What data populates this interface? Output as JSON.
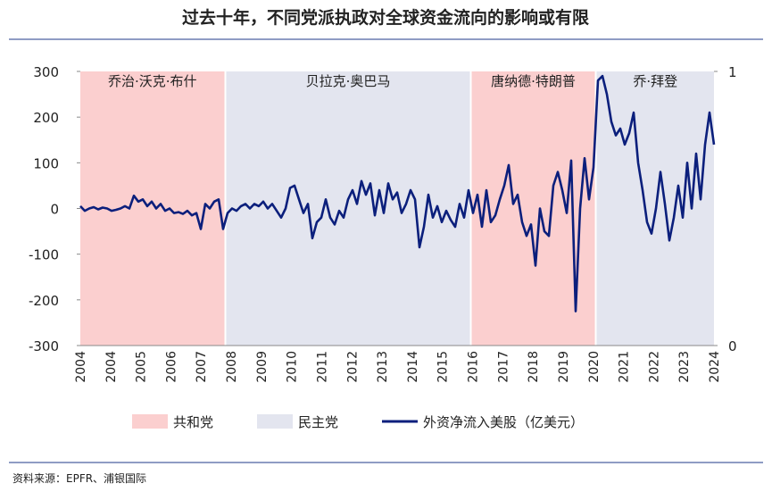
{
  "chart_data": {
    "type": "line",
    "title": "过去十年，不同党派执政对全球资金流向的影响或有限",
    "x_labels": [
      "2004",
      "2004",
      "2005",
      "2006",
      "2007",
      "2008",
      "2009",
      "2010",
      "2011",
      "2012",
      "2013",
      "2014",
      "2015",
      "2016",
      "2017",
      "2018",
      "2019",
      "2020",
      "2021",
      "2022",
      "2023",
      "2024"
    ],
    "ylim": [
      -300,
      300
    ],
    "yticks": [
      -300,
      -200,
      -100,
      0,
      100,
      200,
      300
    ],
    "y2lim": [
      0,
      1
    ],
    "y2ticks": [
      0,
      1
    ],
    "parties": [
      {
        "name": "共和党",
        "color": "#fbcfcf"
      },
      {
        "name": "民主党",
        "color": "#e3e5ef"
      }
    ],
    "regions": [
      {
        "label": "乔治·沃克·布什",
        "party": 0,
        "start": 0,
        "end": 32
      },
      {
        "label": "贝拉克·奥巴马",
        "party": 1,
        "start": 33,
        "end": 87
      },
      {
        "label": "唐纳德·特朗普",
        "party": 0,
        "start": 88,
        "end": 115
      },
      {
        "label": "乔·拜登",
        "party": 1,
        "start": 116,
        "end": 142
      }
    ],
    "series": [
      {
        "name": "外资净流入美股（亿美元）",
        "color": "#0b1f7c",
        "values": [
          5,
          -5,
          0,
          3,
          -2,
          2,
          0,
          -5,
          -3,
          0,
          5,
          0,
          28,
          15,
          20,
          5,
          15,
          0,
          10,
          -5,
          0,
          -10,
          -8,
          -12,
          -5,
          -15,
          -10,
          -45,
          10,
          0,
          15,
          20,
          -45,
          -10,
          0,
          -5,
          5,
          10,
          0,
          10,
          5,
          15,
          0,
          10,
          -5,
          -20,
          0,
          45,
          50,
          20,
          -10,
          10,
          -65,
          -30,
          -20,
          20,
          -20,
          -35,
          -5,
          -20,
          20,
          40,
          10,
          60,
          30,
          55,
          -15,
          40,
          -10,
          55,
          20,
          35,
          -10,
          10,
          40,
          20,
          -85,
          -40,
          30,
          -20,
          5,
          -30,
          -5,
          -25,
          -40,
          10,
          -20,
          40,
          -10,
          30,
          -40,
          40,
          -30,
          -15,
          20,
          50,
          95,
          10,
          30,
          -30,
          -60,
          -35,
          -125,
          0,
          -50,
          -60,
          50,
          80,
          40,
          -10,
          105,
          -225,
          0,
          110,
          20,
          90,
          280,
          290,
          250,
          190,
          160,
          175,
          140,
          165,
          210,
          100,
          40,
          -30,
          -55,
          0,
          80,
          10,
          -70,
          -20,
          50,
          -20,
          100,
          0,
          120,
          20,
          140,
          210,
          140
        ]
      }
    ],
    "source": "资料来源：EPFR、浦银国际"
  }
}
